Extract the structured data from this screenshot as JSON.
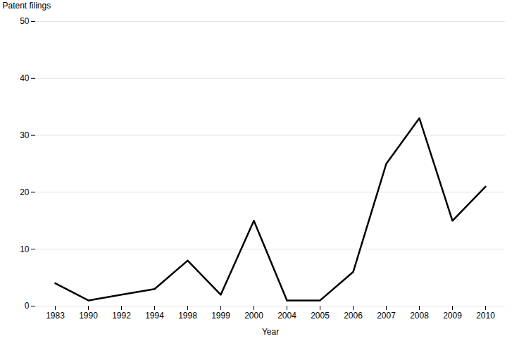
{
  "chart_data": {
    "type": "line",
    "categories": [
      "1983",
      "1990",
      "1992",
      "1994",
      "1998",
      "1999",
      "2000",
      "2004",
      "2005",
      "2006",
      "2007",
      "2008",
      "2009",
      "2010"
    ],
    "values": [
      4,
      1,
      2,
      3,
      8,
      2,
      15,
      1,
      1,
      6,
      25,
      33,
      15,
      21
    ],
    "xlabel": "Year",
    "ylabel": "Patent filings",
    "ylim": [
      0,
      50
    ],
    "yticks": [
      0,
      10,
      20,
      30,
      40,
      50
    ],
    "grid": true
  }
}
